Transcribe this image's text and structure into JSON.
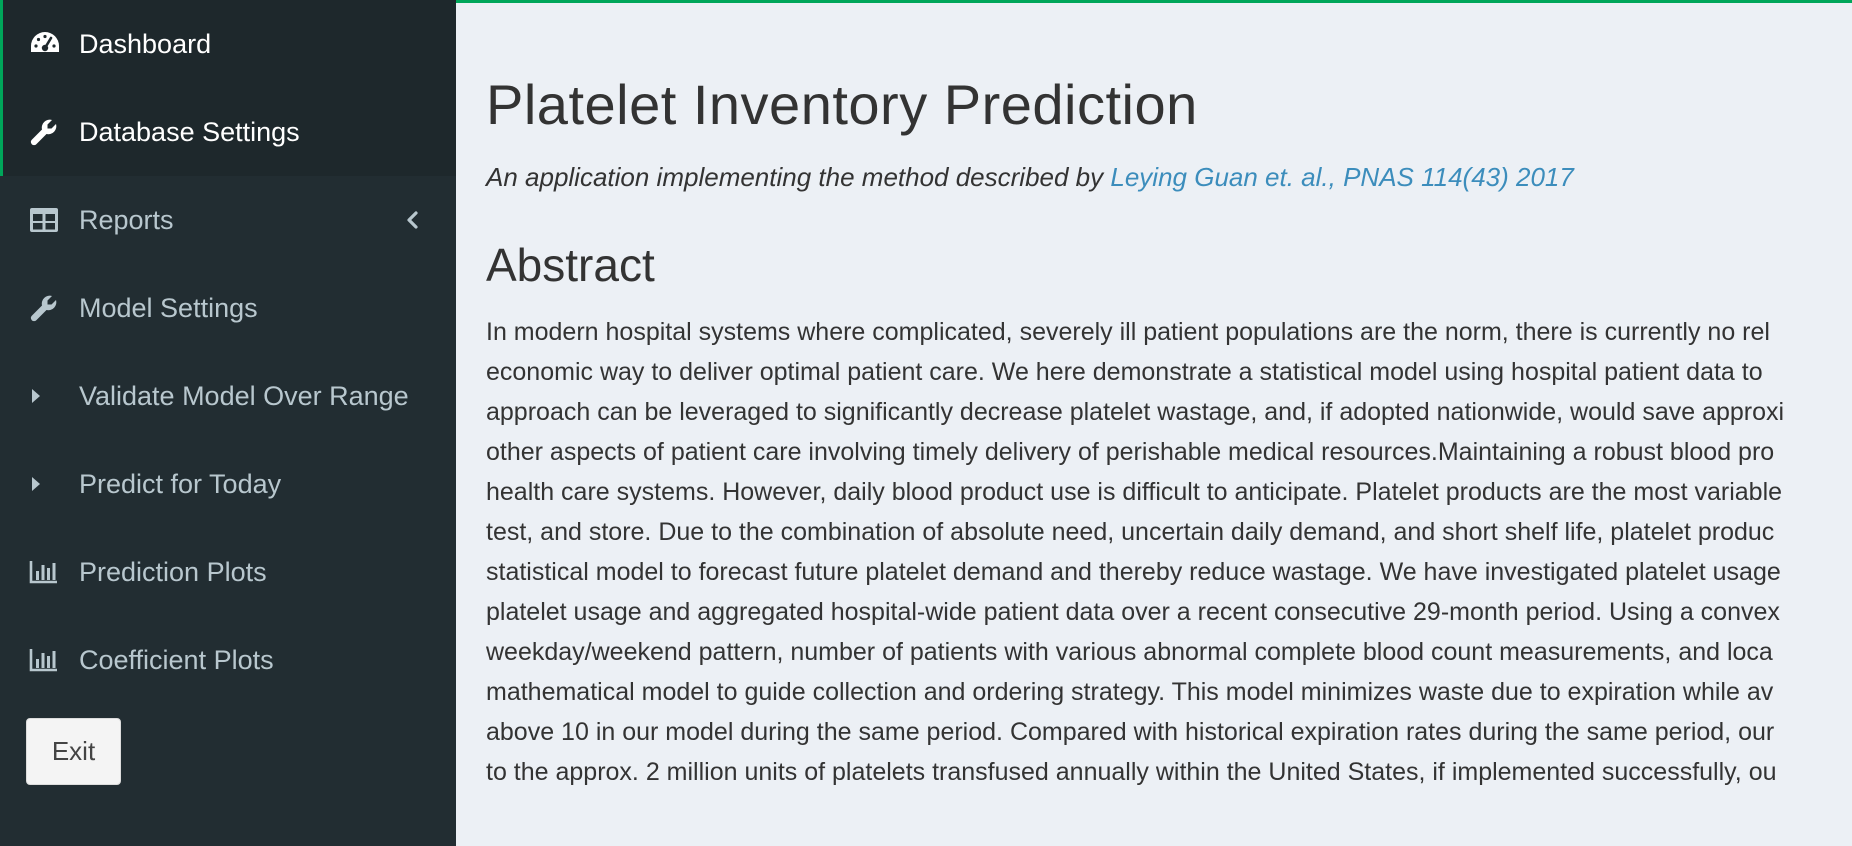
{
  "sidebar": {
    "items": [
      {
        "label": "Dashboard",
        "icon": "dashboard-icon",
        "active": true
      },
      {
        "label": "Database Settings",
        "icon": "wrench-icon",
        "active": true
      },
      {
        "label": "Reports",
        "icon": "table-icon",
        "expandable": true
      },
      {
        "label": "Model Settings",
        "icon": "wrench-icon"
      },
      {
        "label": "Validate Model Over Range",
        "icon": "caret-right-icon"
      },
      {
        "label": "Predict for Today",
        "icon": "caret-right-icon"
      },
      {
        "label": "Prediction Plots",
        "icon": "bar-chart-icon"
      },
      {
        "label": "Coefficient Plots",
        "icon": "bar-chart-icon"
      }
    ],
    "exit_label": "Exit"
  },
  "main": {
    "title": "Platelet Inventory Prediction",
    "subtitle_text": "An application implementing the method described by ",
    "subtitle_link": "Leying Guan et. al., PNAS 114(43) 2017",
    "section_title": "Abstract",
    "abstract_lines": [
      "In modern hospital systems where complicated, severely ill patient populations are the norm, there is currently no rel",
      "economic way to deliver optimal patient care. We here demonstrate a statistical model using hospital patient data to",
      "approach can be leveraged to significantly decrease platelet wastage, and, if adopted nationwide, would save approxi",
      "other aspects of patient care involving timely delivery of perishable medical resources.Maintaining a robust blood pro",
      "health care systems. However, daily blood product use is difficult to anticipate. Platelet products are the most variable",
      "test, and store. Due to the combination of absolute need, uncertain daily demand, and short shelf life, platelet produc",
      "statistical model to forecast future platelet demand and thereby reduce wastage. We have investigated platelet usage",
      "platelet usage and aggregated hospital-wide patient data over a recent consecutive 29-month period. Using a convex",
      "weekday/weekend pattern, number of patients with various abnormal complete blood count measurements, and loca",
      "mathematical model to guide collection and ordering strategy. This model minimizes waste due to expiration while av",
      "above 10 in our model during the same period. Compared with historical expiration rates during the same period, our",
      "to the approx. 2 million units of platelets transfused annually within the United States, if implemented successfully, ou"
    ]
  },
  "colors": {
    "sidebar_bg": "#222d32",
    "sidebar_active_bg": "#1e282c",
    "accent": "#00a65a",
    "link": "#3c8dbc",
    "content_bg": "#ecf0f5"
  }
}
